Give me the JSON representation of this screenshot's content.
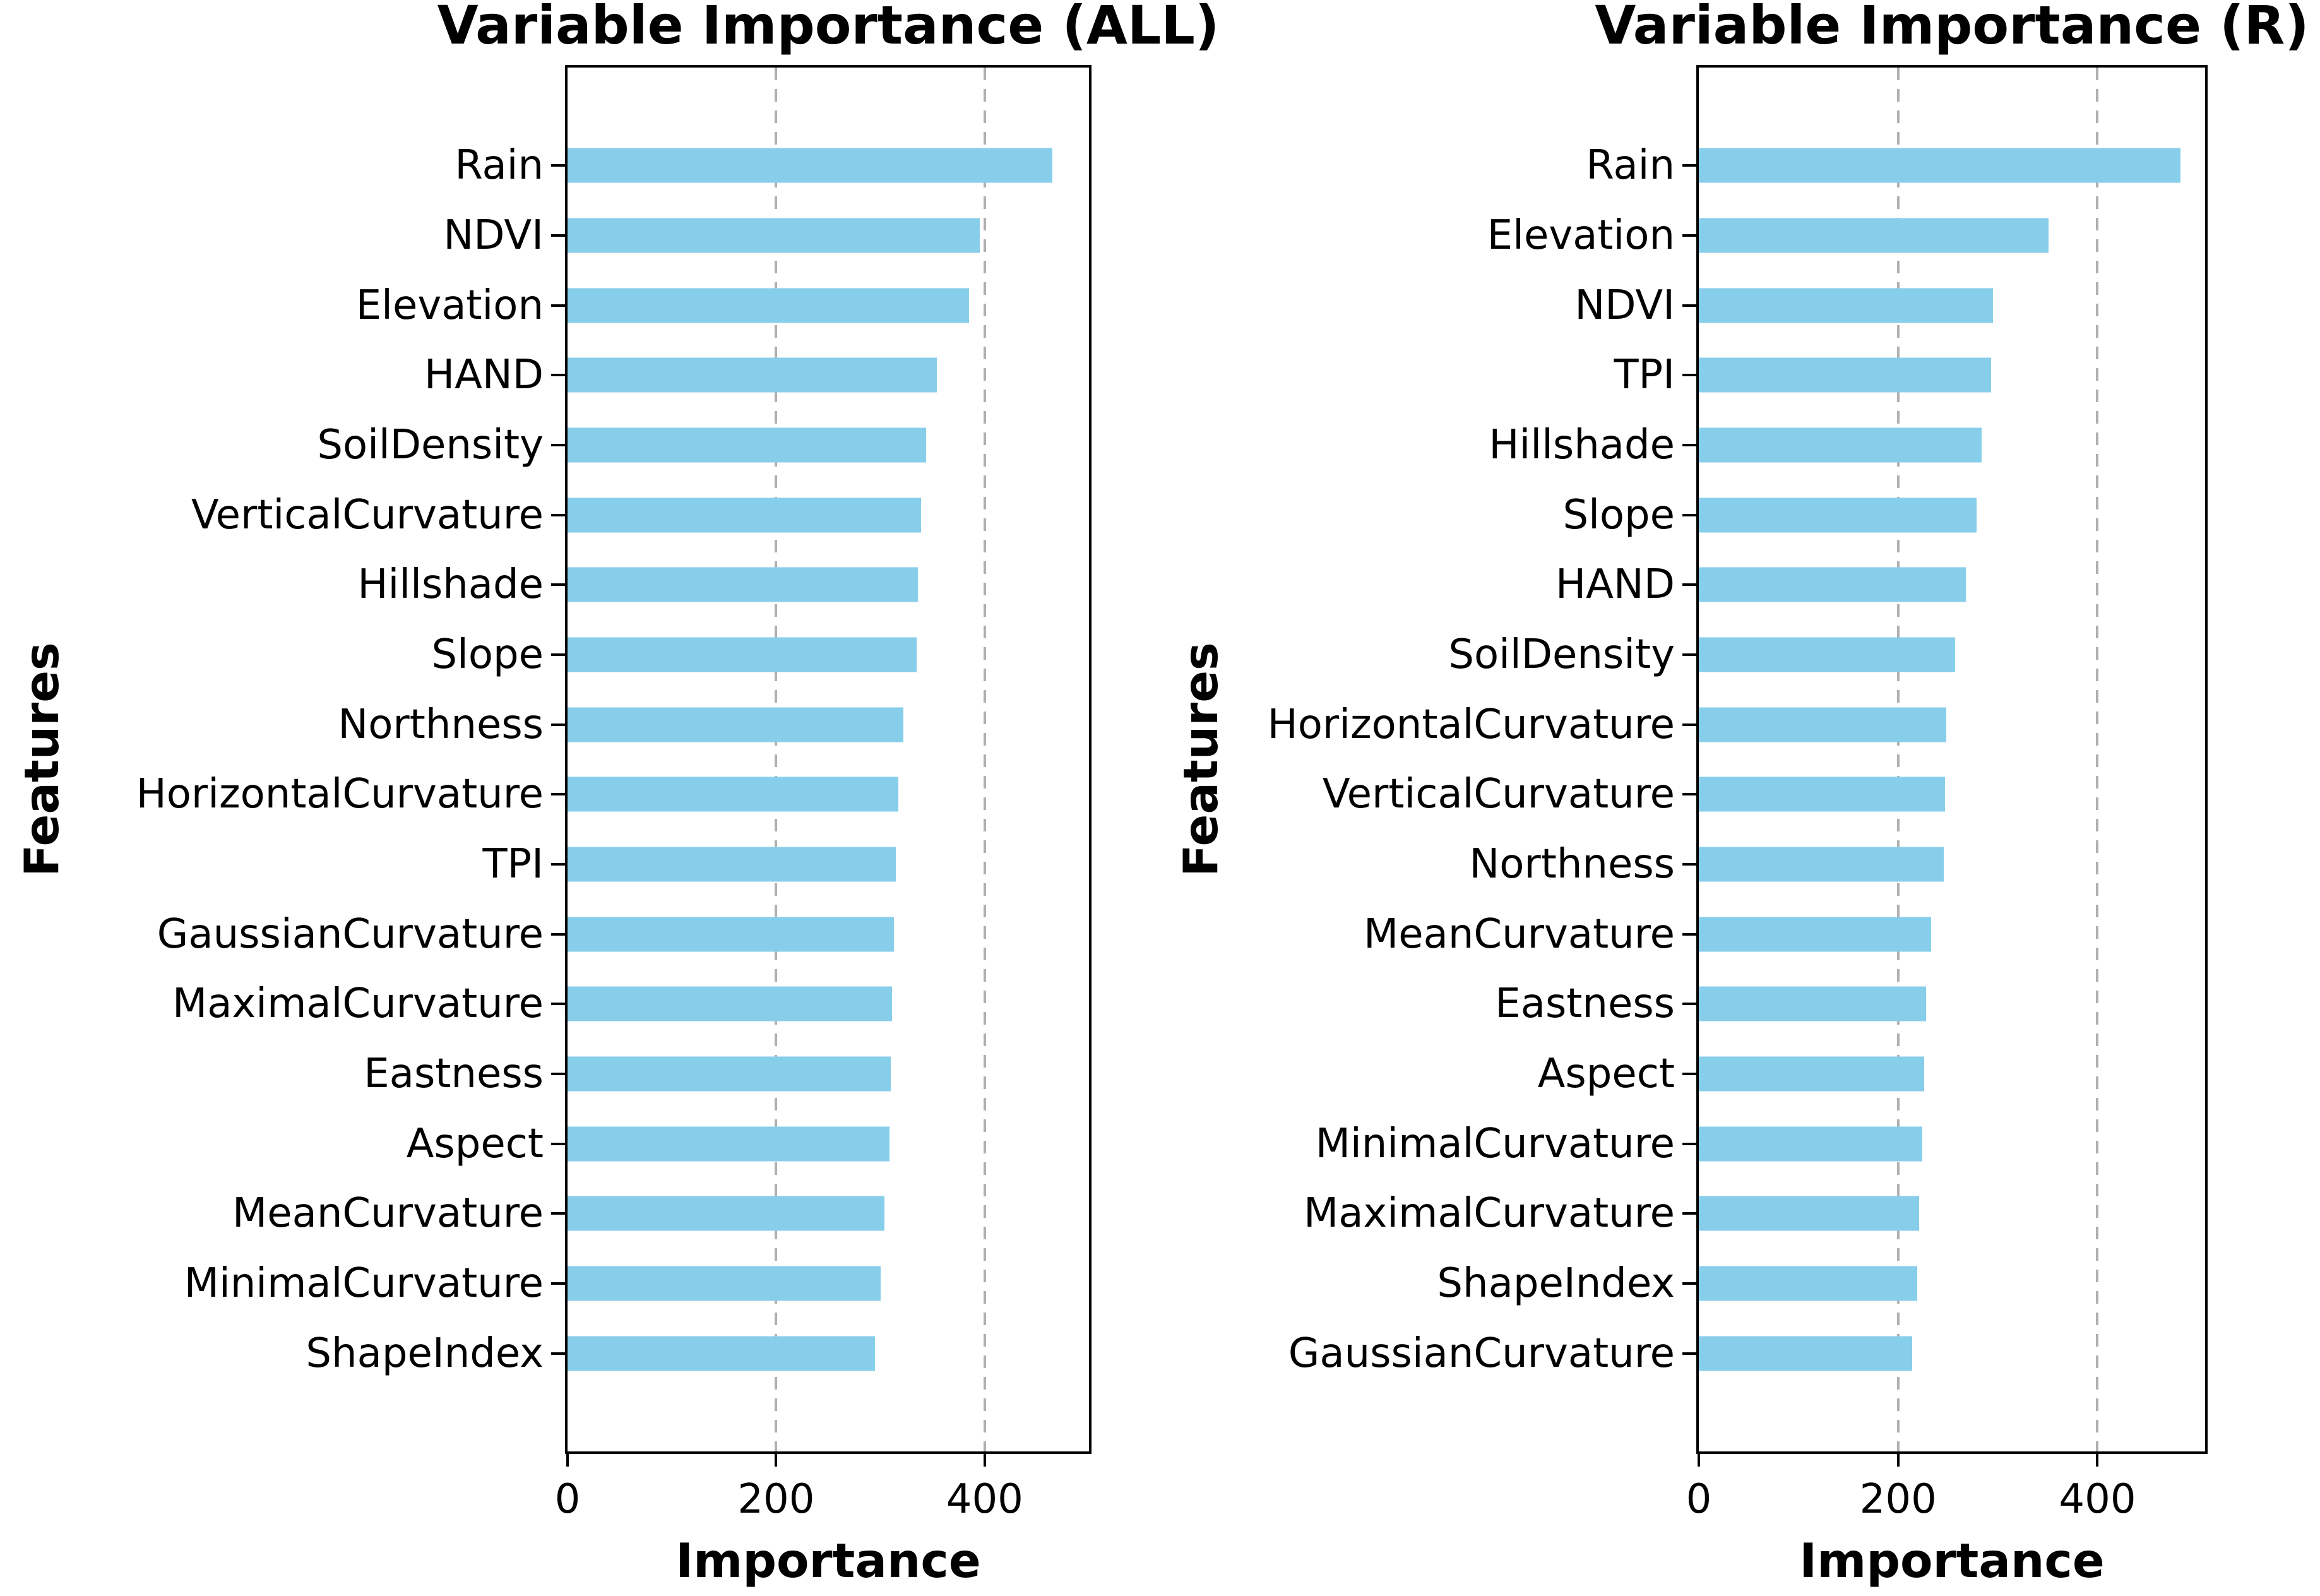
{
  "figure": {
    "background": "#ffffff"
  },
  "colors": {
    "bar": "#87CEEB",
    "grid": "#b0b0b0",
    "spine": "#000000",
    "text": "#000000"
  },
  "chart_data": [
    {
      "type": "bar",
      "orientation": "horizontal",
      "title": "Variable Importance (ALL)",
      "xlabel": "Importance",
      "ylabel": "Features",
      "categories": [
        "Rain",
        "NDVI",
        "Elevation",
        "HAND",
        "SoilDensity",
        "VerticalCurvature",
        "Hillshade",
        "Slope",
        "Northness",
        "HorizontalCurvature",
        "TPI",
        "GaussianCurvature",
        "MaximalCurvature",
        "Eastness",
        "Aspect",
        "MeanCurvature",
        "MinimalCurvature",
        "ShapeIndex"
      ],
      "values": [
        465,
        395,
        385,
        354,
        344,
        339,
        336,
        335,
        322,
        317,
        315,
        313,
        311,
        310,
        309,
        304,
        300,
        295
      ],
      "xticks": [
        0,
        200,
        400
      ],
      "xlim": [
        0,
        500
      ],
      "grid": "vertical-dashed",
      "legend": "none",
      "bar_color": "#87CEEB"
    },
    {
      "type": "bar",
      "orientation": "horizontal",
      "title": "Variable Importance (R)",
      "xlabel": "Importance",
      "ylabel": "Features",
      "categories": [
        "Rain",
        "Elevation",
        "NDVI",
        "TPI",
        "Hillshade",
        "Slope",
        "HAND",
        "SoilDensity",
        "HorizontalCurvature",
        "VerticalCurvature",
        "Northness",
        "MeanCurvature",
        "Eastness",
        "Aspect",
        "MinimalCurvature",
        "MaximalCurvature",
        "ShapeIndex",
        "GaussianCurvature"
      ],
      "values": [
        483,
        351,
        295,
        293,
        284,
        279,
        268,
        257,
        248,
        247,
        246,
        233,
        228,
        226,
        224,
        221,
        219,
        214
      ],
      "xticks": [
        0,
        200,
        400
      ],
      "xlim": [
        0,
        508
      ],
      "grid": "vertical-dashed",
      "legend": "none",
      "bar_color": "#87CEEB"
    }
  ]
}
